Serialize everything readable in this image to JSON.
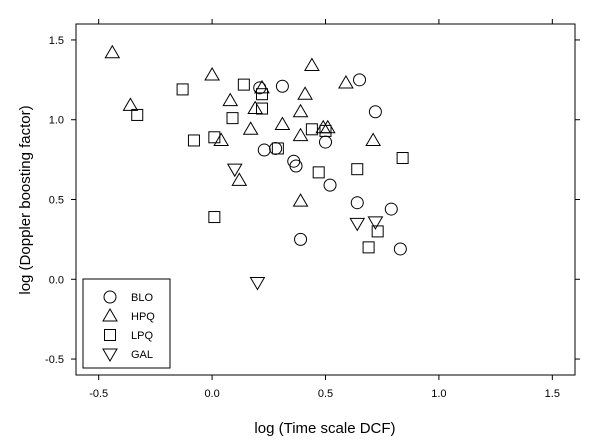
{
  "chart_data": {
    "type": "scatter",
    "xlabel": "log (Time scale DCF)",
    "ylabel": "log (Doppler boosting factor)",
    "xlim": [
      -0.6,
      1.6
    ],
    "ylim": [
      -0.6,
      1.6
    ],
    "xticks": [
      "-0.5",
      "0.0",
      "0.5",
      "1.0",
      "1.5"
    ],
    "xtick_values": [
      -0.5,
      0.0,
      0.5,
      1.0,
      1.5
    ],
    "yticks": [
      "1.5",
      "1.0",
      "0.5",
      "0.0",
      "-0.5"
    ],
    "ytick_values": [
      1.5,
      1.0,
      0.5,
      0.0,
      -0.5
    ],
    "legend_position": "bottom-left",
    "series": [
      {
        "name": "BLO",
        "marker": "circle",
        "points": [
          [
            0.21,
            1.2
          ],
          [
            0.31,
            1.21
          ],
          [
            0.65,
            1.25
          ],
          [
            0.72,
            1.05
          ],
          [
            0.5,
            0.86
          ],
          [
            0.28,
            0.82
          ],
          [
            0.23,
            0.81
          ],
          [
            0.36,
            0.74
          ],
          [
            0.37,
            0.71
          ],
          [
            0.52,
            0.59
          ],
          [
            0.64,
            0.48
          ],
          [
            0.79,
            0.44
          ],
          [
            0.39,
            0.25
          ],
          [
            0.83,
            0.19
          ]
        ]
      },
      {
        "name": "HPQ",
        "marker": "triangle-up",
        "points": [
          [
            -0.44,
            1.42
          ],
          [
            -0.36,
            1.09
          ],
          [
            0.0,
            1.28
          ],
          [
            0.44,
            1.34
          ],
          [
            0.59,
            1.23
          ],
          [
            0.41,
            1.16
          ],
          [
            0.22,
            1.2
          ],
          [
            0.08,
            1.12
          ],
          [
            0.19,
            1.07
          ],
          [
            0.39,
            1.05
          ],
          [
            0.31,
            0.97
          ],
          [
            0.49,
            0.95
          ],
          [
            0.51,
            0.95
          ],
          [
            0.17,
            0.94
          ],
          [
            0.39,
            0.9
          ],
          [
            0.71,
            0.87
          ],
          [
            0.04,
            0.87
          ],
          [
            0.12,
            0.62
          ],
          [
            0.39,
            0.49
          ]
        ]
      },
      {
        "name": "LPQ",
        "marker": "square",
        "points": [
          [
            -0.33,
            1.03
          ],
          [
            -0.13,
            1.19
          ],
          [
            0.14,
            1.22
          ],
          [
            0.22,
            1.16
          ],
          [
            0.09,
            1.01
          ],
          [
            0.22,
            1.07
          ],
          [
            -0.08,
            0.87
          ],
          [
            0.01,
            0.89
          ],
          [
            0.29,
            0.82
          ],
          [
            0.44,
            0.94
          ],
          [
            0.5,
            0.93
          ],
          [
            0.47,
            0.67
          ],
          [
            0.84,
            0.76
          ],
          [
            0.64,
            0.69
          ],
          [
            0.01,
            0.39
          ],
          [
            0.73,
            0.3
          ],
          [
            0.69,
            0.2
          ]
        ]
      },
      {
        "name": "GAL",
        "marker": "triangle-down",
        "points": [
          [
            0.1,
            0.69
          ],
          [
            0.64,
            0.35
          ],
          [
            0.72,
            0.36
          ],
          [
            0.2,
            -0.02
          ]
        ]
      }
    ]
  }
}
